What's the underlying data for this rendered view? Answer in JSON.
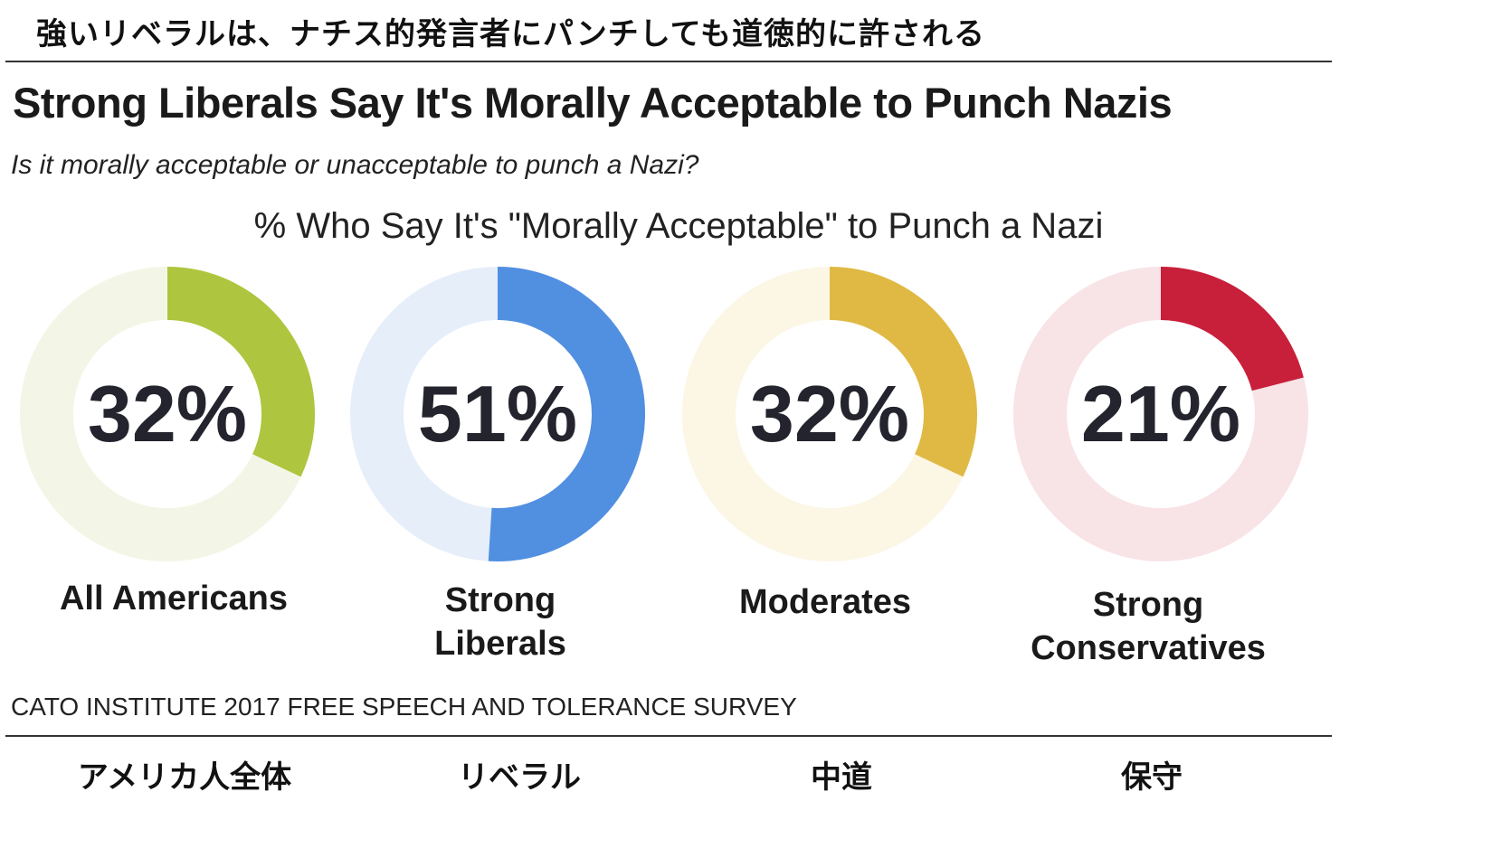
{
  "header": {
    "japanese_title": "強いリベラルは、ナチス的発言者にパンチしても道徳的に許される"
  },
  "chart_data": {
    "type": "pie",
    "subtype": "donut",
    "title": "Strong Liberals Say It's Morally Acceptable to Punch Nazis",
    "subtitle": "Is it morally acceptable or unacceptable to punch a Nazi?",
    "heading": "% Who Say It's \"Morally Acceptable\" to Punch a Nazi",
    "categories": [
      "All Americans",
      "Strong Liberals",
      "Moderates",
      "Strong Conservatives"
    ],
    "values": [
      32,
      51,
      32,
      21
    ],
    "unit": "%",
    "value_labels": [
      "32%",
      "51%",
      "32%",
      "21%"
    ],
    "colors": [
      "#aec53f",
      "#518fe0",
      "#e0b944",
      "#c8203a"
    ],
    "track_colors": [
      "#f3f6e6",
      "#e6eefa",
      "#fcf6e5",
      "#f8e3e6"
    ],
    "source": "CATO INSTITUTE 2017 FREE SPEECH AND TOLERANCE SURVEY"
  },
  "labels": {
    "english": [
      [
        "All Americans"
      ],
      [
        "Strong",
        "Liberals"
      ],
      [
        "Moderates"
      ],
      [
        "Strong",
        "Conservatives"
      ]
    ],
    "japanese": [
      "アメリカ人全体",
      "リベラル",
      "中道",
      "保守"
    ]
  }
}
